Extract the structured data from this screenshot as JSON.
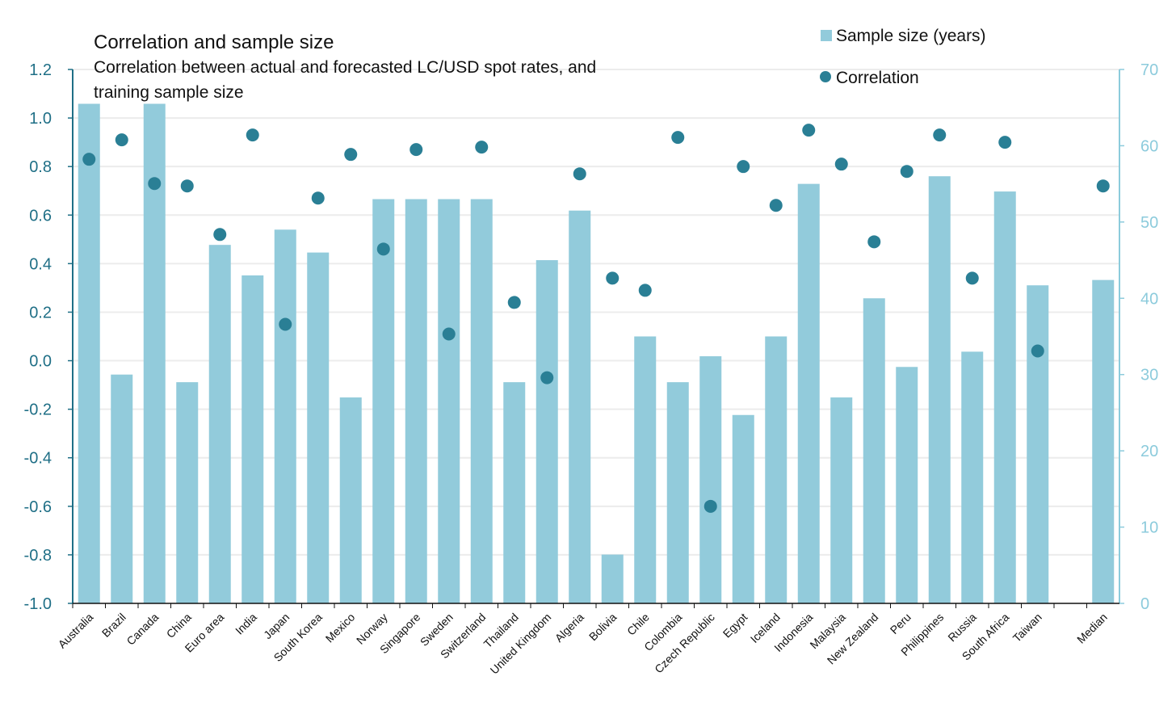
{
  "chart_data": {
    "type": "bar+scatter",
    "title": "Correlation and sample size",
    "subtitle_lines": [
      "Correlation between actual and forecasted LC/USD spot rates, and",
      "training sample size"
    ],
    "categories": [
      "Australia",
      "Brazil",
      "Canada",
      "China",
      "Euro area",
      "India",
      "Japan",
      "South Korea",
      "Mexico",
      "Norway",
      "Singapore",
      "Sweden",
      "Switzerland",
      "Thailand",
      "United Kingdom",
      "Algeria",
      "Bolivia",
      "Chile",
      "Colombia",
      "Czech Republic",
      "Egypt",
      "Iceland",
      "Indonesia",
      "Malaysia",
      "New Zealand",
      "Peru",
      "Philippines",
      "Russia",
      "South Africa",
      "Taiwan",
      "",
      "Median"
    ],
    "series": [
      {
        "name": "Sample size (years)",
        "type": "bar",
        "axis": "right",
        "color": "#92cbdb",
        "values": [
          65.5,
          30,
          65.5,
          29,
          47,
          43,
          49,
          46,
          27,
          53,
          53,
          53,
          53,
          29,
          45,
          51.5,
          6.4,
          35,
          29,
          32.4,
          24.7,
          35,
          55,
          27,
          40,
          31,
          56,
          33,
          54,
          41.7,
          null,
          42.4
        ]
      },
      {
        "name": "Correlation",
        "type": "scatter",
        "axis": "left",
        "color": "#2a7f95",
        "values": [
          0.83,
          0.91,
          0.73,
          0.72,
          0.52,
          0.93,
          0.15,
          0.67,
          0.85,
          0.46,
          0.87,
          0.11,
          0.88,
          0.24,
          -0.07,
          0.77,
          0.34,
          0.29,
          0.92,
          -0.6,
          0.8,
          0.64,
          0.95,
          0.81,
          0.49,
          0.78,
          0.93,
          0.34,
          0.9,
          0.04,
          null,
          0.72
        ]
      }
    ],
    "left_axis": {
      "ylim": [
        -1.0,
        1.2
      ],
      "ticks": [
        "-1.0",
        "-0.8",
        "-0.6",
        "-0.4",
        "-0.2",
        "0.0",
        "0.2",
        "0.4",
        "0.6",
        "0.8",
        "1.0",
        "1.2"
      ],
      "color": "#1f6f86"
    },
    "right_axis": {
      "ylim": [
        0,
        70
      ],
      "ticks": [
        "0",
        "10",
        "20",
        "30",
        "40",
        "50",
        "60",
        "70"
      ],
      "color": "#8ccbdc"
    },
    "legend": {
      "placement": "top-right",
      "entries": [
        "Sample size (years)",
        "Correlation"
      ]
    },
    "grid": true
  }
}
